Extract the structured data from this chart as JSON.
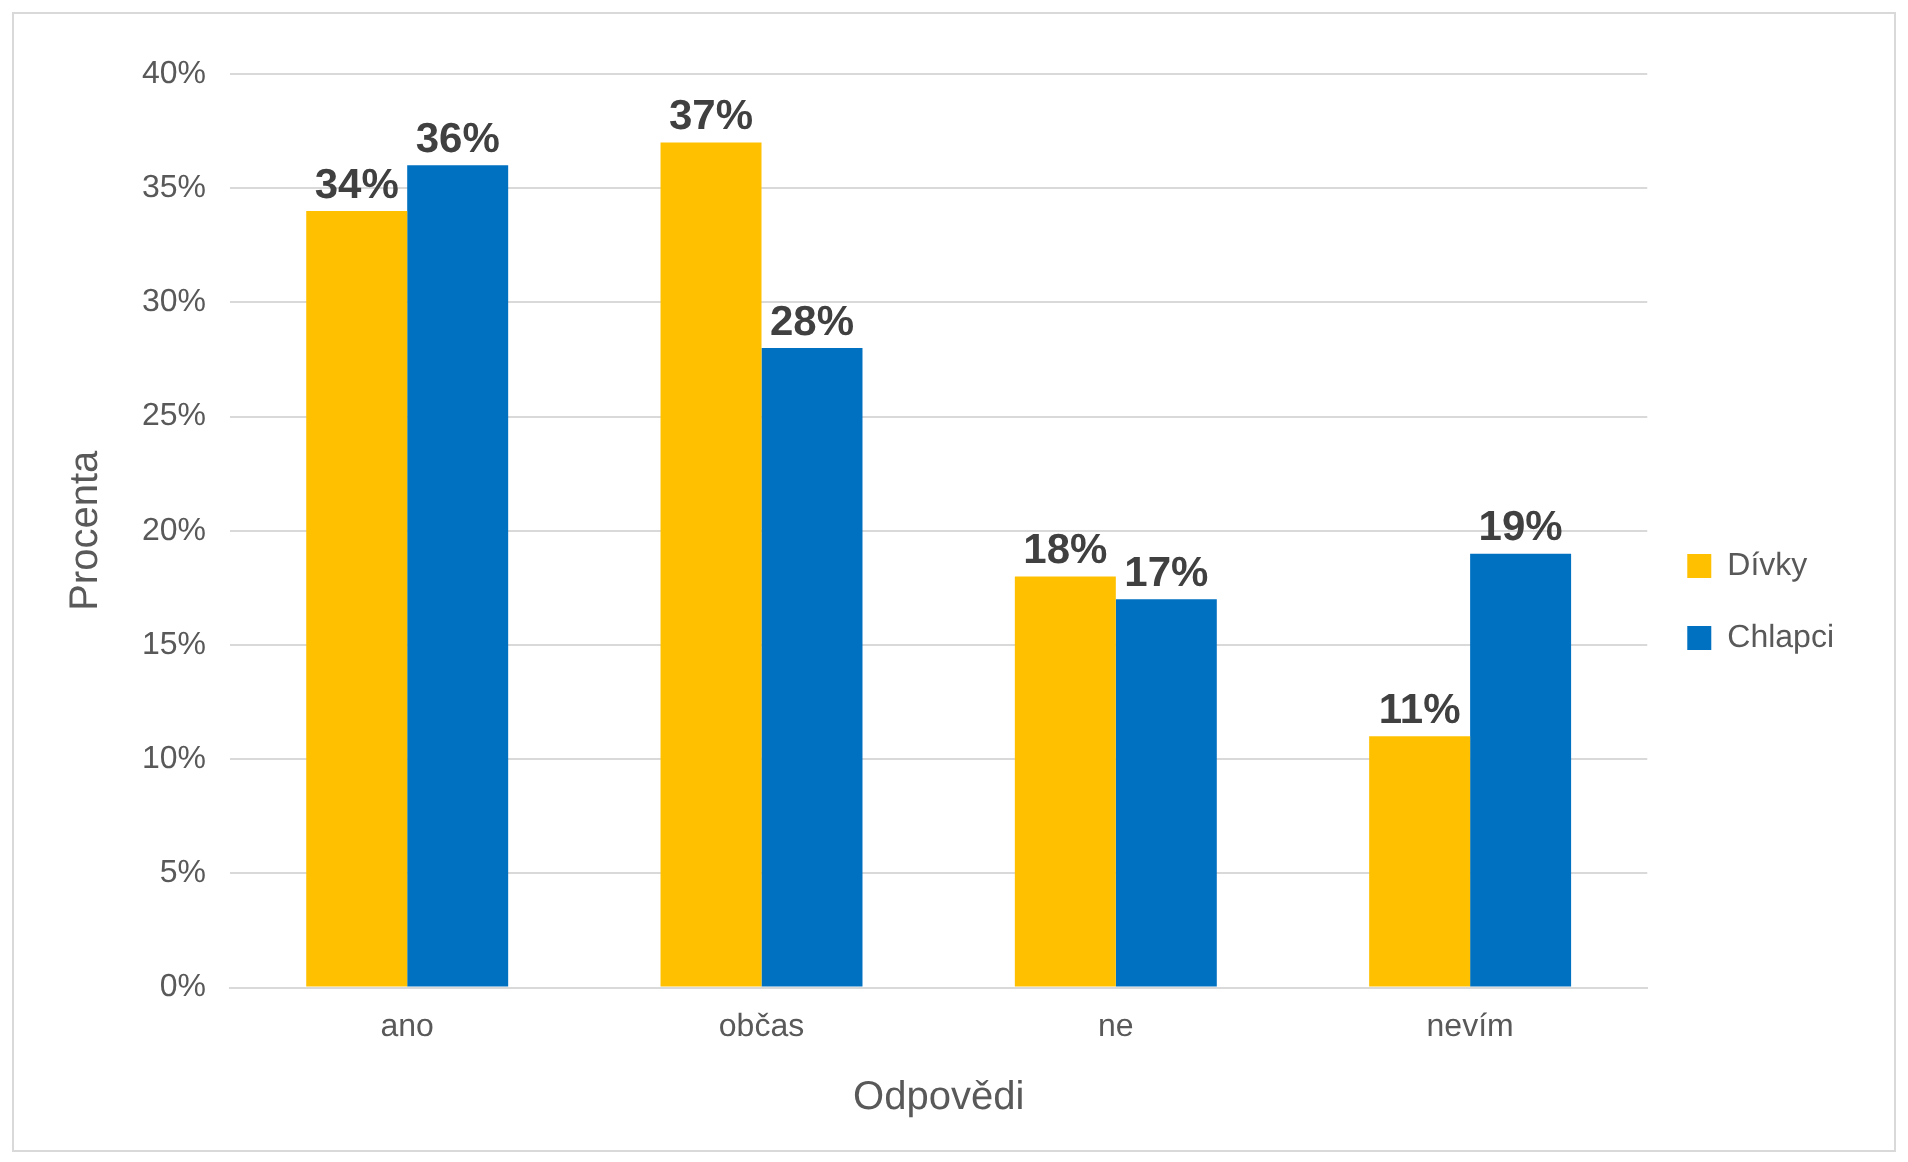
{
  "chart_data": {
    "type": "bar",
    "xlabel": "Odpovědi",
    "ylabel": "Procenta",
    "categories": [
      "ano",
      "občas",
      "ne",
      "nevím"
    ],
    "series": [
      {
        "name": "Dívky",
        "color": "#ffc000",
        "values": [
          34,
          37,
          18,
          11
        ],
        "value_labels": [
          "34%",
          "37%",
          "18%",
          "11%"
        ]
      },
      {
        "name": "Chlapci",
        "color": "#0070c0",
        "values": [
          36,
          28,
          17,
          19
        ],
        "value_labels": [
          "36%",
          "28%",
          "17%",
          "19%"
        ]
      }
    ],
    "ylim": [
      0,
      40
    ],
    "yticks": [
      {
        "value": 0,
        "label": "0%"
      },
      {
        "value": 5,
        "label": "5%"
      },
      {
        "value": 10,
        "label": "10%"
      },
      {
        "value": 15,
        "label": "15%"
      },
      {
        "value": 20,
        "label": "20%"
      },
      {
        "value": 25,
        "label": "25%"
      },
      {
        "value": 30,
        "label": "30%"
      },
      {
        "value": 35,
        "label": "35%"
      },
      {
        "value": 40,
        "label": "40%"
      }
    ],
    "grid": "y",
    "legend": "right"
  }
}
